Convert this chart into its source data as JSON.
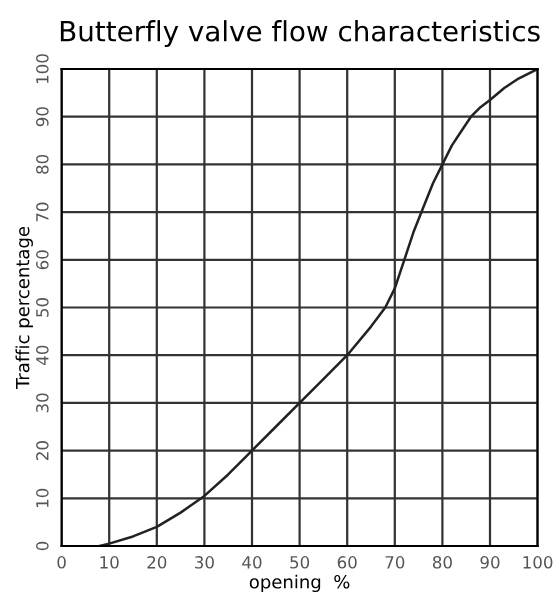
{
  "chart_data": {
    "type": "line",
    "title": "Butterfly valve flow characteristics",
    "xlabel": "opening  %",
    "ylabel": "Traffic percentage",
    "series": [
      {
        "color": "#222222",
        "x": [
          8,
          10,
          15,
          20,
          25,
          30,
          35,
          40,
          45,
          50,
          55,
          60,
          65,
          68,
          70,
          72,
          74,
          76,
          78,
          80,
          82,
          84,
          86,
          88,
          90,
          93,
          96,
          100
        ],
        "values": [
          0,
          0.5,
          2,
          4,
          7,
          10.5,
          15,
          20,
          25,
          30,
          35,
          40,
          46,
          50,
          54,
          60,
          66,
          71,
          76,
          80,
          84,
          87,
          90,
          92,
          93.5,
          96,
          98,
          100
        ]
      }
    ],
    "xlim": [
      0,
      100
    ],
    "ylim": [
      0,
      100
    ],
    "xticks": [
      0,
      10,
      20,
      30,
      40,
      50,
      60,
      70,
      80,
      90,
      100
    ],
    "yticks": [
      0,
      10,
      20,
      30,
      40,
      50,
      60,
      70,
      80,
      90,
      100
    ],
    "grid": true,
    "marker": "none",
    "line_style": "solid"
  }
}
